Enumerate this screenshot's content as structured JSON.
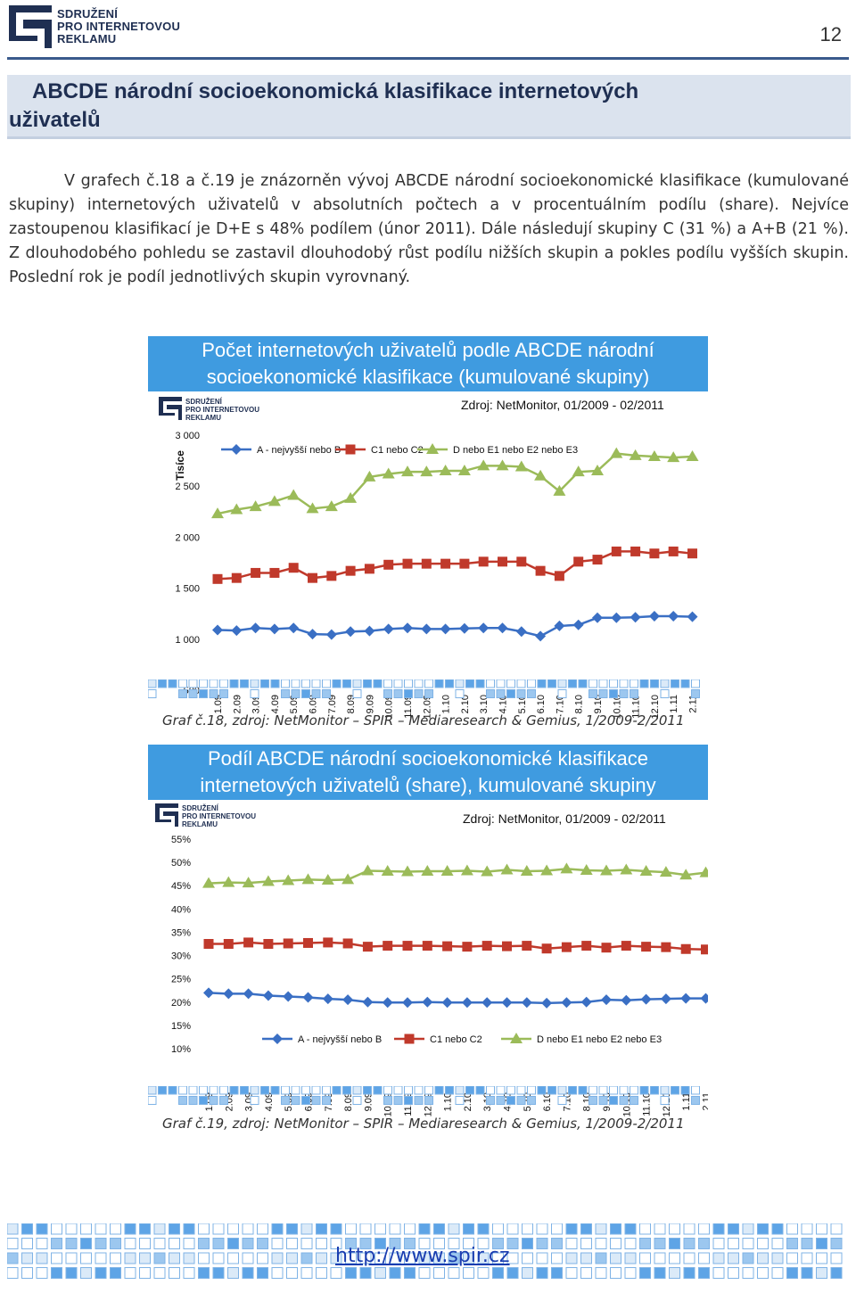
{
  "header": {
    "logo_lines": [
      "SDRUŽENÍ",
      "PRO INTERNETOVOU",
      "REKLAMU"
    ],
    "page_number": "12"
  },
  "section": {
    "title_line1": "ABCDE národní socioekonomická klasifikace internetových",
    "title_line2": "uživatelů"
  },
  "intro": "V grafech č.18 a č.19 je znázorněn vývoj ABCDE národní socioekonomické klasifikace (kumulované skupiny) internetových uživatelů v absolutních počtech a v procentuálním podílu (share). Nejvíce zastoupenou klasifikací je D+E s 48% podílem (únor 2011). Dále následují skupiny C (31 %) a A+B (21 %). Z dlouhodobého pohledu se zastavil dlouhodobý růst podílu nižších skupin a pokles podílu vyšších skupin. Poslední rok je podíl jednotlivých skupin vyrovnaný.",
  "colors": {
    "series_a": "#3a6fc4",
    "series_c": "#c0392b",
    "series_de": "#9bbb59",
    "title_bg": "#3f9be0"
  },
  "chart_data": [
    {
      "type": "line",
      "title_line1": "Počet internetových uživatelů podle ABCDE národní",
      "title_line2": "socioekonomické klasifikace (kumulované skupiny)",
      "source": "Zdroj: NetMonitor, 01/2009 - 02/2011",
      "ylabel": "Tisíce",
      "ylim": [
        500,
        3000
      ],
      "yticks": [
        500,
        1000,
        1500,
        2000,
        2500,
        3000
      ],
      "ytick_labels": [
        "500",
        "1 000",
        "1 500",
        "2 000",
        "2 500",
        "3 000"
      ],
      "legend_position": "top",
      "x": [
        "1.09",
        "2.09",
        "3.09",
        "4.09",
        "5.09",
        "6.09",
        "7.09",
        "8.09",
        "9.09",
        "10.09",
        "11.09",
        "12.09",
        "1.10",
        "2.10",
        "3.10",
        "4.10",
        "5.10",
        "6.10",
        "7.10",
        "8.10",
        "9.10",
        "10.10",
        "11.10",
        "12.10",
        "1.11",
        "2.11"
      ],
      "series": [
        {
          "name": "A - nejvyšší nebo B",
          "marker": "diamond",
          "values": [
            1090,
            1085,
            1110,
            1100,
            1110,
            1050,
            1045,
            1075,
            1080,
            1100,
            1110,
            1100,
            1100,
            1105,
            1110,
            1110,
            1075,
            1030,
            1130,
            1140,
            1210,
            1210,
            1215,
            1225,
            1225,
            1220
          ]
        },
        {
          "name": "C1 nebo C2",
          "marker": "square",
          "values": [
            1590,
            1600,
            1650,
            1650,
            1700,
            1600,
            1620,
            1670,
            1690,
            1730,
            1740,
            1740,
            1740,
            1740,
            1760,
            1760,
            1760,
            1670,
            1620,
            1760,
            1780,
            1860,
            1860,
            1840,
            1860,
            1840
          ]
        },
        {
          "name": "D nebo E1 nebo E2 nebo E3",
          "marker": "triangle",
          "values": [
            2230,
            2270,
            2300,
            2350,
            2410,
            2280,
            2300,
            2380,
            2590,
            2620,
            2640,
            2640,
            2650,
            2650,
            2700,
            2700,
            2690,
            2600,
            2450,
            2640,
            2650,
            2820,
            2800,
            2790,
            2780,
            2790
          ]
        }
      ]
    },
    {
      "type": "line",
      "title_line1": "Podíl ABCDE národní socioekonomické klasifikace",
      "title_line2": "internetových uživatelů (share), kumulované skupiny",
      "source": "Zdroj: NetMonitor, 01/2009 - 02/2011",
      "ylim": [
        10,
        55
      ],
      "yticks": [
        10,
        15,
        20,
        25,
        30,
        35,
        40,
        45,
        50,
        55
      ],
      "ytick_labels": [
        "10%",
        "15%",
        "20%",
        "25%",
        "30%",
        "35%",
        "40%",
        "45%",
        "50%",
        "55%"
      ],
      "legend_position": "bottom",
      "x": [
        "1.09",
        "2.09",
        "3.09",
        "4.09",
        "5.09",
        "6.09",
        "7.09",
        "8.09",
        "9.09",
        "10.09",
        "11.09",
        "12.09",
        "1.10",
        "2.10",
        "3.10",
        "4.10",
        "5.10",
        "6.10",
        "7.10",
        "8.10",
        "9.10",
        "10.10",
        "11.10",
        "12.10",
        "1.11",
        "2.11"
      ],
      "series": [
        {
          "name": "A - nejvyšší nebo B",
          "marker": "diamond",
          "values": [
            22.0,
            21.8,
            21.8,
            21.4,
            21.2,
            21.0,
            20.7,
            20.5,
            20.0,
            19.9,
            19.9,
            20.0,
            19.9,
            19.9,
            19.9,
            19.9,
            19.9,
            19.8,
            19.9,
            20.0,
            20.5,
            20.4,
            20.6,
            20.7,
            20.8,
            20.8
          ]
        },
        {
          "name": "C1 nebo C2",
          "marker": "square",
          "values": [
            32.5,
            32.5,
            32.8,
            32.5,
            32.6,
            32.7,
            32.8,
            32.6,
            31.9,
            32.1,
            32.1,
            32.1,
            32.0,
            31.9,
            32.1,
            32.0,
            32.1,
            31.5,
            31.8,
            32.1,
            31.7,
            32.1,
            31.9,
            31.8,
            31.4,
            31.3
          ]
        },
        {
          "name": "D nebo E1 nebo E2 nebo E3",
          "marker": "triangle",
          "values": [
            45.5,
            45.7,
            45.6,
            45.9,
            46.1,
            46.3,
            46.2,
            46.3,
            48.2,
            48.1,
            48.0,
            48.1,
            48.1,
            48.2,
            48.0,
            48.4,
            48.1,
            48.2,
            48.6,
            48.3,
            48.2,
            48.4,
            48.1,
            47.9,
            47.3,
            47.8
          ]
        }
      ]
    }
  ],
  "captions": {
    "chart1": "Graf č.18, zdroj: NetMonitor – SPIR – Mediaresearch & Gemius, 1/2009-2/2011",
    "chart2": "Graf č.19, zdroj: NetMonitor – SPIR – Mediaresearch & Gemius, 1/2009-2/2011"
  },
  "footer": {
    "link": "http://www.spir.cz"
  }
}
